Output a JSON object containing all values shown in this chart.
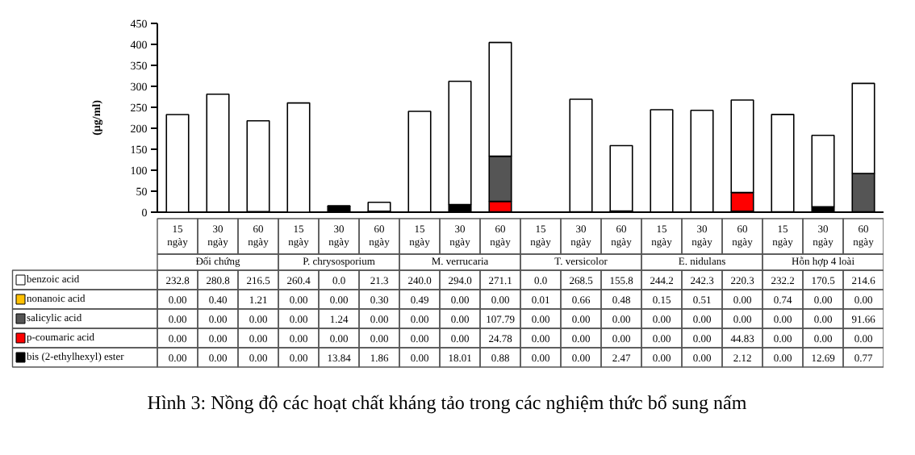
{
  "chart_data": {
    "type": "bar",
    "stacked": true,
    "title": "Hình 3: Nồng độ các hoạt chất kháng tảo trong các nghiệm thức bổ sung nấm",
    "ylabel": "(μg/ml)",
    "categories": [
      "15 ngày",
      "30 ngày",
      "60 ngày",
      "15 ngày",
      "30 ngày",
      "60 ngày",
      "15 ngày",
      "30 ngày",
      "60 ngày",
      "15 ngày",
      "30 ngày",
      "60 ngày",
      "15 ngày",
      "30 ngày",
      "60 ngày",
      "15 ngày",
      "30 ngày",
      "60 ngày"
    ],
    "annotations": [
      "Đối chứng",
      "P. chrysosporium",
      "M. verrucaria",
      "T. versicolor",
      "E. nidulans",
      "Hỗn hợp 4 loài"
    ],
    "ylim": [
      0,
      450
    ],
    "yticks": [
      0,
      50,
      100,
      150,
      200,
      250,
      300,
      350,
      400,
      450
    ],
    "grid": false,
    "legend": "bottom left",
    "series": [
      {
        "name": "bis (2-ethylhexyl) ester",
        "color": "#000000",
        "values": [
          0,
          0,
          0,
          0,
          13.84,
          1.86,
          0,
          18.01,
          0.88,
          0,
          0,
          2.47,
          0,
          0,
          2.12,
          0,
          12.69,
          0.77
        ],
        "value_labels": [
          "0.00",
          "0.00",
          "0.00",
          "0.00",
          "13.84",
          "1.86",
          "0.00",
          "18.01",
          "0.88",
          "0.00",
          "0.00",
          "2.47",
          "0.00",
          "0.00",
          "2.12",
          "0.00",
          "12.69",
          "0.77"
        ]
      },
      {
        "name": "p-coumaric acid",
        "color": "#ff0000",
        "values": [
          0,
          0,
          0,
          0,
          0,
          0,
          0,
          0,
          24.78,
          0,
          0,
          0,
          0,
          0,
          44.83,
          0,
          0,
          0
        ],
        "value_labels": [
          "0.00",
          "0.00",
          "0.00",
          "0.00",
          "0.00",
          "0.00",
          "0.00",
          "0.00",
          "24.78",
          "0.00",
          "0.00",
          "0.00",
          "0.00",
          "0.00",
          "44.83",
          "0.00",
          "0.00",
          "0.00"
        ]
      },
      {
        "name": "salicylic acid",
        "color": "#555555",
        "values": [
          0,
          0,
          0,
          0,
          1.24,
          0,
          0,
          0,
          107.79,
          0,
          0,
          0,
          0,
          0,
          0,
          0,
          0,
          91.66
        ],
        "value_labels": [
          "0.00",
          "0.00",
          "0.00",
          "0.00",
          "1.24",
          "0.00",
          "0.00",
          "0.00",
          "107.79",
          "0.00",
          "0.00",
          "0.00",
          "0.00",
          "0.00",
          "0.00",
          "0.00",
          "0.00",
          "91.66"
        ]
      },
      {
        "name": "nonanoic acid",
        "color": "#ffc000",
        "values": [
          0,
          0.4,
          1.21,
          0,
          0,
          0.3,
          0.49,
          0,
          0,
          0.01,
          0.66,
          0.48,
          0.15,
          0.51,
          0,
          0.74,
          0,
          0
        ],
        "value_labels": [
          "0.00",
          "0.40",
          "1.21",
          "0.00",
          "0.00",
          "0.30",
          "0.49",
          "0.00",
          "0.00",
          "0.01",
          "0.66",
          "0.48",
          "0.15",
          "0.51",
          "0.00",
          "0.74",
          "0.00",
          "0.00"
        ]
      },
      {
        "name": "benzoic acid",
        "color": "#ffffff",
        "values": [
          232.8,
          280.8,
          216.5,
          260.4,
          0,
          21.3,
          240.0,
          294.0,
          271.1,
          0,
          268.5,
          155.8,
          244.2,
          242.3,
          220.3,
          232.2,
          170.5,
          214.6
        ],
        "value_labels": [
          "232.8",
          "280.8",
          "216.5",
          "260.4",
          "0.0",
          "21.3",
          "240.0",
          "294.0",
          "271.1",
          "0.0",
          "268.5",
          "155.8",
          "244.2",
          "242.3",
          "220.3",
          "232.2",
          "170.5",
          "214.6"
        ]
      }
    ]
  }
}
